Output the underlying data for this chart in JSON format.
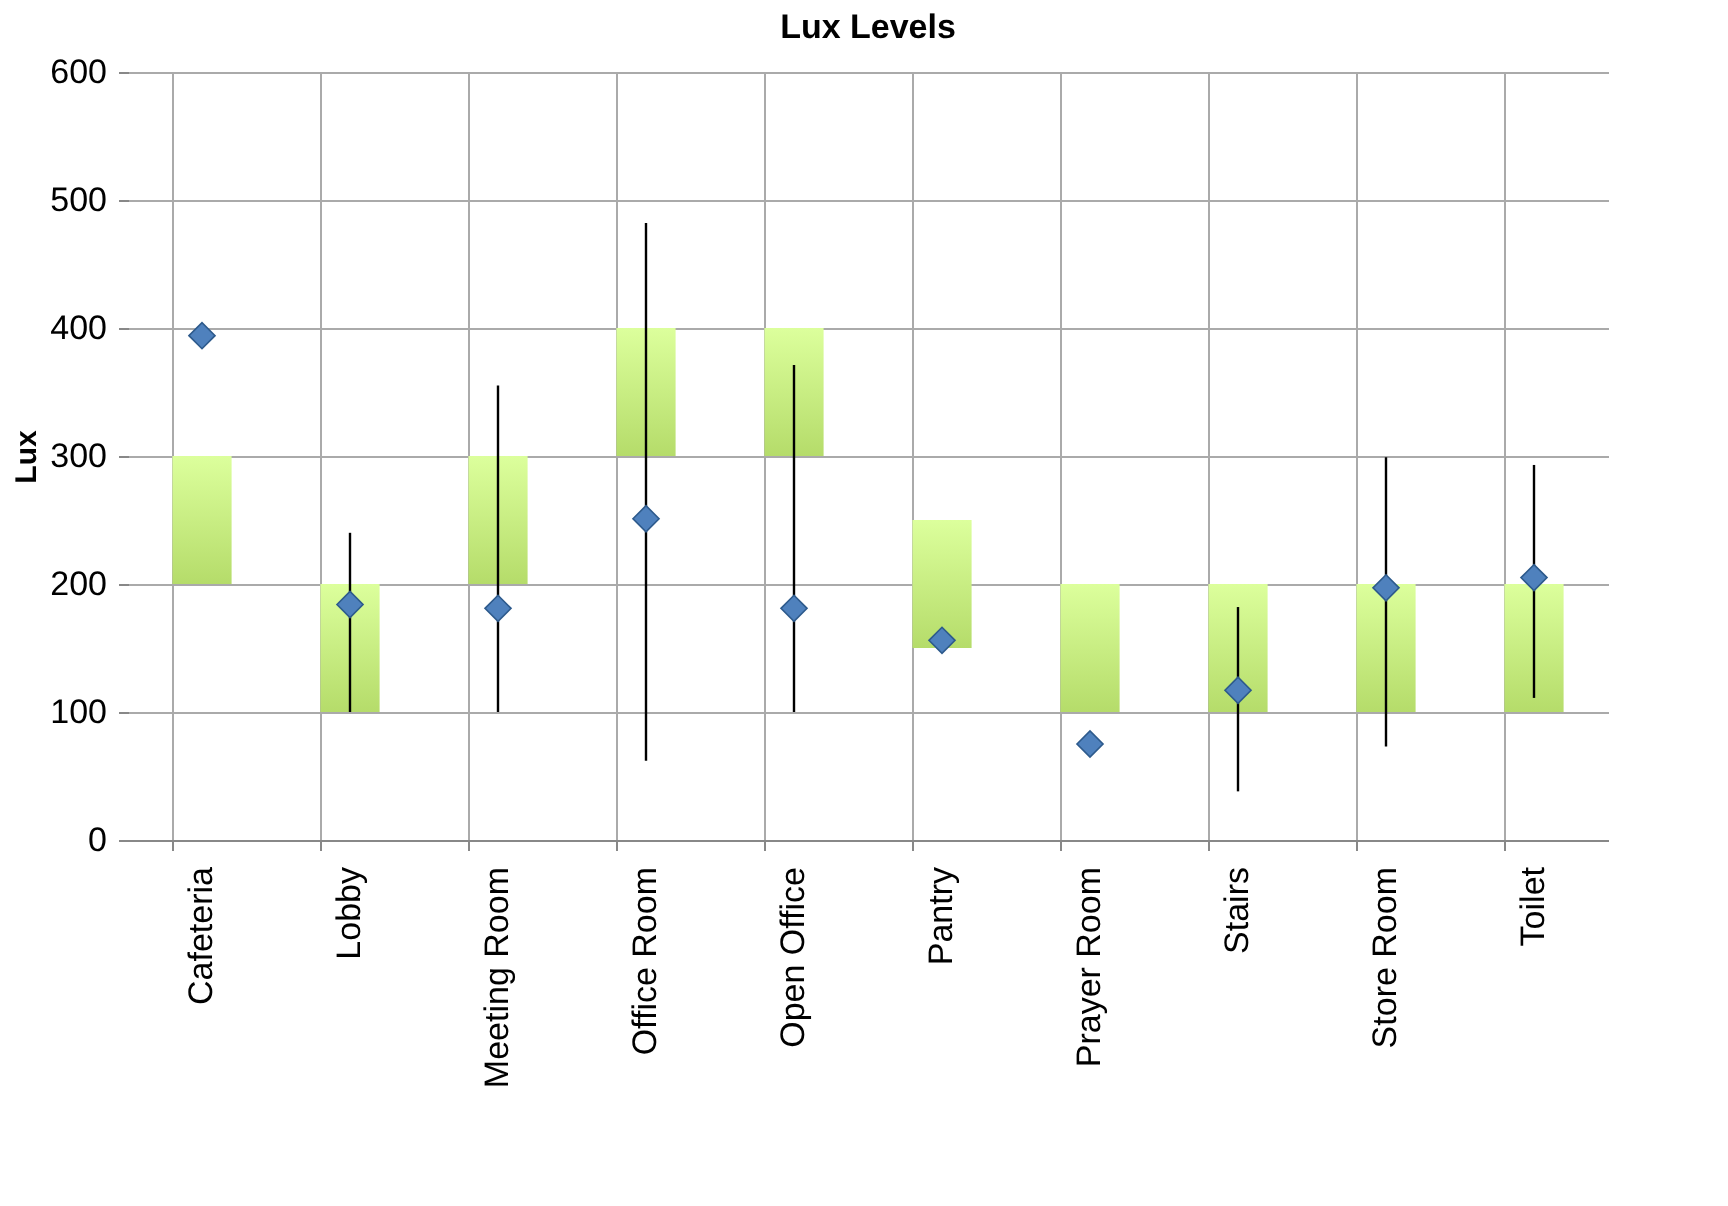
{
  "chart_data": {
    "type": "bar",
    "title": "Lux Levels",
    "ylabel": "Lux",
    "categories": [
      "Cafeteria",
      "Lobby",
      "Meeting Room",
      "Office Room",
      "Open Office",
      "Pantry",
      "Prayer Room",
      "Stairs",
      "Store Room",
      "Toilet"
    ],
    "series": [
      {
        "color": "#b5dc6a",
        "base": [
          200,
          100,
          200,
          300,
          300,
          150,
          100,
          100,
          100,
          100
        ],
        "values": [
          100,
          100,
          100,
          100,
          100,
          100,
          100,
          100,
          100,
          100
        ]
      },
      {
        "type": "scatter",
        "color": "#4f81bd",
        "values": [
          394,
          184,
          181,
          251,
          181,
          156,
          75,
          117,
          197,
          205
        ],
        "errors": [
          null,
          [
            100,
            240
          ],
          [
            100,
            355
          ],
          [
            62,
            482
          ],
          [
            100,
            371
          ],
          null,
          null,
          [
            38,
            182
          ],
          [
            73,
            299
          ],
          [
            111,
            293
          ]
        ]
      }
    ],
    "ylim": [
      0,
      600
    ],
    "yticks": [
      0,
      100,
      200,
      300,
      400,
      500,
      600
    ],
    "grid": true,
    "marker": "diamond"
  }
}
